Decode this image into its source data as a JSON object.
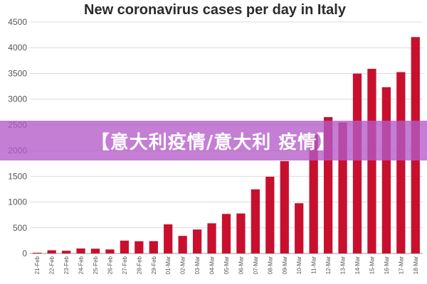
{
  "banner": {
    "text": "【意大利疫情/意大利 疫情】"
  },
  "chart_data": {
    "type": "bar",
    "title": "New coronavirus cases per day in Italy",
    "xlabel": "",
    "ylabel": "",
    "ylim": [
      0,
      4500
    ],
    "yticks": [
      0,
      500,
      1000,
      1500,
      2000,
      2500,
      3000,
      3500,
      4000,
      4500
    ],
    "grid": true,
    "bar_color": "#c8102e",
    "categories": [
      "21-Feb",
      "22-Feb",
      "23-Feb",
      "24-Feb",
      "25-Feb",
      "26-Feb",
      "27-Feb",
      "28-Feb",
      "29-Feb",
      "01-Mar",
      "02-Mar",
      "03-Mar",
      "04-Mar",
      "05-Mar",
      "06-Mar",
      "07-Mar",
      "08-Mar",
      "09-Mar",
      "10-Mar",
      "11-Mar",
      "12-Mar",
      "13-Mar",
      "14-Mar",
      "15-Mar",
      "16-Mar",
      "17-Mar",
      "18-Mar"
    ],
    "values": [
      14,
      62,
      53,
      97,
      93,
      78,
      250,
      238,
      240,
      566,
      342,
      466,
      587,
      769,
      778,
      1247,
      1492,
      1797,
      977,
      2313,
      2651,
      2547,
      3497,
      3590,
      3233,
      3526,
      4207
    ]
  }
}
